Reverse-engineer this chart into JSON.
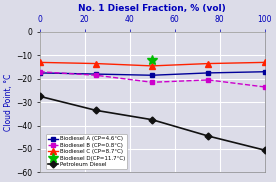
{
  "title": "No. 1 Diesel Fraction, % (vol)",
  "ylabel": "Cloud Point, °C",
  "xlim": [
    0,
    100
  ],
  "ylim": [
    -60,
    0
  ],
  "xticks": [
    0,
    20,
    40,
    60,
    80,
    100
  ],
  "yticks": [
    0,
    -10,
    -20,
    -30,
    -40,
    -50,
    -60
  ],
  "series": [
    {
      "label": "Biodiesel A (CP=4.6°C)",
      "color": "#000099",
      "marker": "s",
      "markersize": 3.5,
      "linestyle": "-",
      "linewidth": 1.0,
      "x": [
        0,
        25,
        50,
        75,
        100
      ],
      "y": [
        -17.5,
        -18.0,
        -18.5,
        -17.5,
        -17.0
      ]
    },
    {
      "label": "Biodiesel B (CP=0.8°C)",
      "color": "#cc00cc",
      "marker": "s",
      "markersize": 3.5,
      "linestyle": "--",
      "linewidth": 1.0,
      "x": [
        0,
        25,
        50,
        75,
        100
      ],
      "y": [
        -17.0,
        -18.5,
        -21.5,
        -20.5,
        -23.5
      ]
    },
    {
      "label": "Biodiesel C (CP=8.7°C)",
      "color": "#ff2200",
      "marker": "^",
      "markersize": 4.5,
      "linestyle": "-",
      "linewidth": 1.0,
      "x": [
        0,
        25,
        50,
        75,
        100
      ],
      "y": [
        -13.0,
        -13.5,
        -14.5,
        -13.5,
        -13.0
      ]
    },
    {
      "label": "Biodiesel D(CP=11.7°C)",
      "color": "#00bb00",
      "marker": "*",
      "markersize": 7,
      "linestyle": "none",
      "linewidth": 0,
      "x": [
        50
      ],
      "y": [
        -12.0
      ]
    },
    {
      "label": "Petroleum Diesel",
      "color": "#111111",
      "marker": "D",
      "markersize": 3.5,
      "linestyle": "-",
      "linewidth": 1.2,
      "x": [
        0,
        25,
        50,
        75,
        100
      ],
      "y": [
        -27.5,
        -33.5,
        -37.5,
        -44.5,
        -50.5
      ]
    }
  ],
  "background_color": "#dcdce8",
  "grid_color": "#ffffff",
  "title_color": "#0000bb",
  "axis_label_color": "#0000bb",
  "tick_color": "#0000bb"
}
